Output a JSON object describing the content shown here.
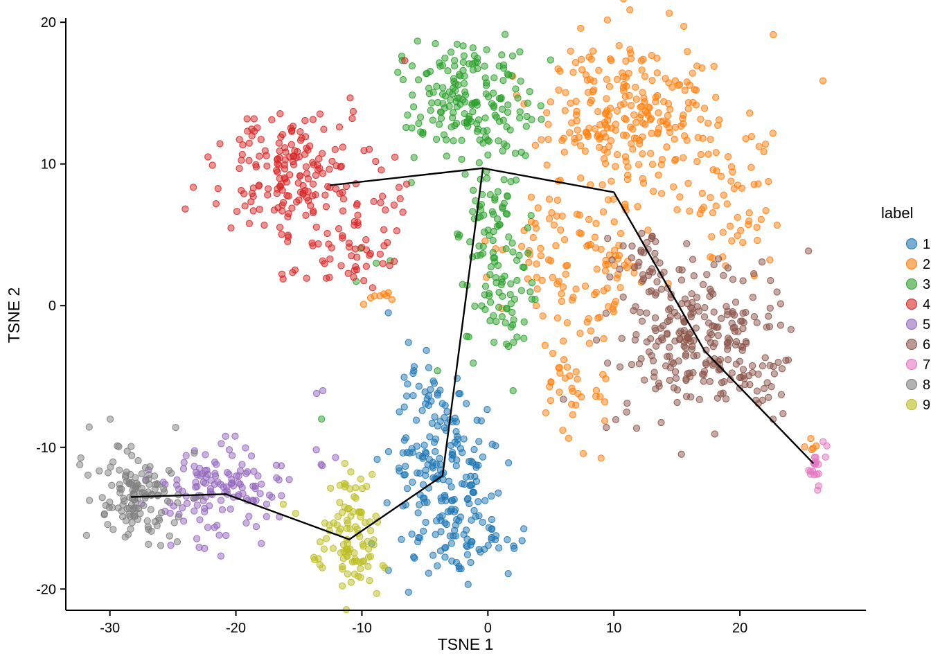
{
  "figure": {
    "background": "#ffffff",
    "axis_color": "#000000",
    "trajectory_color": "#000000"
  },
  "chart_data": {
    "type": "scatter",
    "title": "",
    "xlabel": "TSNE 1",
    "ylabel": "TSNE 2",
    "legend_title": "label",
    "xlim": [
      -33.5,
      30.0
    ],
    "ylim": [
      -21.5,
      20.3
    ],
    "xticks": [
      -30,
      -20,
      -10,
      0,
      10,
      20
    ],
    "yticks": [
      -20,
      -10,
      0,
      10,
      20
    ],
    "grid": false,
    "legend_position": "right",
    "point_radius": 4.6,
    "series": [
      {
        "name": "1",
        "color": "#1f77b4",
        "blobs": [
          {
            "cx": -3.5,
            "cy": -11.5,
            "sx": 2.2,
            "sy": 2.6,
            "n": 160
          },
          {
            "cx": -2.0,
            "cy": -16.5,
            "sx": 2.2,
            "sy": 1.3,
            "n": 60
          },
          {
            "cx": -5.0,
            "cy": -6.0,
            "sx": 1.5,
            "sy": 1.3,
            "n": 25
          }
        ],
        "extras": [
          [
            -7.9,
            -0.5
          ],
          [
            -6.3,
            -2.6
          ]
        ]
      },
      {
        "name": "2",
        "color": "#ff7f0e",
        "blobs": [
          {
            "cx": 11.0,
            "cy": 13.5,
            "sx": 4.0,
            "sy": 2.8,
            "n": 250
          },
          {
            "cx": 8.0,
            "cy": 4.0,
            "sx": 3.0,
            "sy": 2.5,
            "n": 110
          },
          {
            "cx": 19.0,
            "cy": 7.0,
            "sx": 2.0,
            "sy": 2.5,
            "n": 50
          },
          {
            "cx": 6.5,
            "cy": -5.5,
            "sx": 1.5,
            "sy": 2.2,
            "n": 40
          },
          {
            "cx": -9.0,
            "cy": 0.8,
            "sx": 0.7,
            "sy": 0.8,
            "n": 8
          },
          {
            "cx": 25.6,
            "cy": -9.8,
            "sx": 0.7,
            "sy": 0.5,
            "n": 5
          }
        ],
        "extras": []
      },
      {
        "name": "3",
        "color": "#2ca02c",
        "blobs": [
          {
            "cx": -1.5,
            "cy": 14.5,
            "sx": 2.8,
            "sy": 2.2,
            "n": 180
          },
          {
            "cx": 0.3,
            "cy": 6.5,
            "sx": 1.2,
            "sy": 2.0,
            "n": 50
          },
          {
            "cx": 1.2,
            "cy": 1.0,
            "sx": 1.5,
            "sy": 2.2,
            "n": 70
          },
          {
            "cx": -8.5,
            "cy": 3.0,
            "sx": 0.8,
            "sy": 0.8,
            "n": 4
          }
        ],
        "extras": [
          [
            -13.2,
            -8.0
          ],
          [
            -4.0,
            -4.6
          ],
          [
            2.0,
            -6.0
          ]
        ]
      },
      {
        "name": "4",
        "color": "#d62728",
        "blobs": [
          {
            "cx": -15.5,
            "cy": 9.5,
            "sx": 2.6,
            "sy": 2.2,
            "n": 170
          },
          {
            "cx": -11.5,
            "cy": 4.5,
            "sx": 2.0,
            "sy": 1.8,
            "n": 55
          },
          {
            "cx": -8.5,
            "cy": 7.5,
            "sx": 1.2,
            "sy": 1.5,
            "n": 12
          }
        ],
        "extras": [
          [
            -6.6,
            17.3
          ]
        ]
      },
      {
        "name": "5",
        "color": "#9467bd",
        "blobs": [
          {
            "cx": -21.0,
            "cy": -13.0,
            "sx": 2.2,
            "sy": 1.8,
            "n": 130
          },
          {
            "cx": -14.5,
            "cy": -11.5,
            "sx": 1.0,
            "sy": 0.8,
            "n": 5
          }
        ],
        "extras": [
          [
            -13.6,
            -6.2
          ],
          [
            -13.1,
            -6.0
          ],
          [
            -16.4,
            -11.3
          ]
        ]
      },
      {
        "name": "6",
        "color": "#8c564b",
        "blobs": [
          {
            "cx": 16.5,
            "cy": -2.5,
            "sx": 3.2,
            "sy": 2.6,
            "n": 230
          },
          {
            "cx": 13.0,
            "cy": 2.5,
            "sx": 1.8,
            "sy": 1.5,
            "n": 40
          },
          {
            "cx": 21.5,
            "cy": -5.0,
            "sx": 1.5,
            "sy": 1.5,
            "n": 30
          }
        ],
        "extras": [
          [
            9.4,
            -8.6
          ]
        ]
      },
      {
        "name": "7",
        "color": "#e377c2",
        "blobs": [
          {
            "cx": 26.0,
            "cy": -11.3,
            "sx": 0.4,
            "sy": 0.55,
            "n": 18
          }
        ],
        "extras": [
          [
            26.6,
            -9.6
          ],
          [
            26.9,
            -9.9
          ]
        ]
      },
      {
        "name": "8",
        "color": "#7f7f7f",
        "blobs": [
          {
            "cx": -28.0,
            "cy": -13.5,
            "sx": 1.8,
            "sy": 1.8,
            "n": 130
          }
        ],
        "extras": [
          [
            -23.3,
            -10.4
          ]
        ]
      },
      {
        "name": "9",
        "color": "#bcbd22",
        "blobs": [
          {
            "cx": -11.0,
            "cy": -16.5,
            "sx": 1.3,
            "sy": 1.8,
            "n": 95
          },
          {
            "cx": -10.5,
            "cy": -12.8,
            "sx": 0.8,
            "sy": 0.7,
            "n": 8
          }
        ],
        "extras": []
      }
    ],
    "trajectory": {
      "description": "MST path over cluster centroids",
      "paths": [
        [
          [
            -12.5,
            8.5
          ],
          [
            -0.4,
            9.7
          ],
          [
            10.0,
            8.0
          ],
          [
            17.2,
            -3.2
          ],
          [
            25.8,
            -11.1
          ]
        ],
        [
          [
            -0.4,
            9.7
          ],
          [
            -3.6,
            -12.0
          ],
          [
            -11.0,
            -16.5
          ],
          [
            -20.8,
            -13.3
          ],
          [
            -28.3,
            -13.5
          ]
        ]
      ]
    }
  }
}
